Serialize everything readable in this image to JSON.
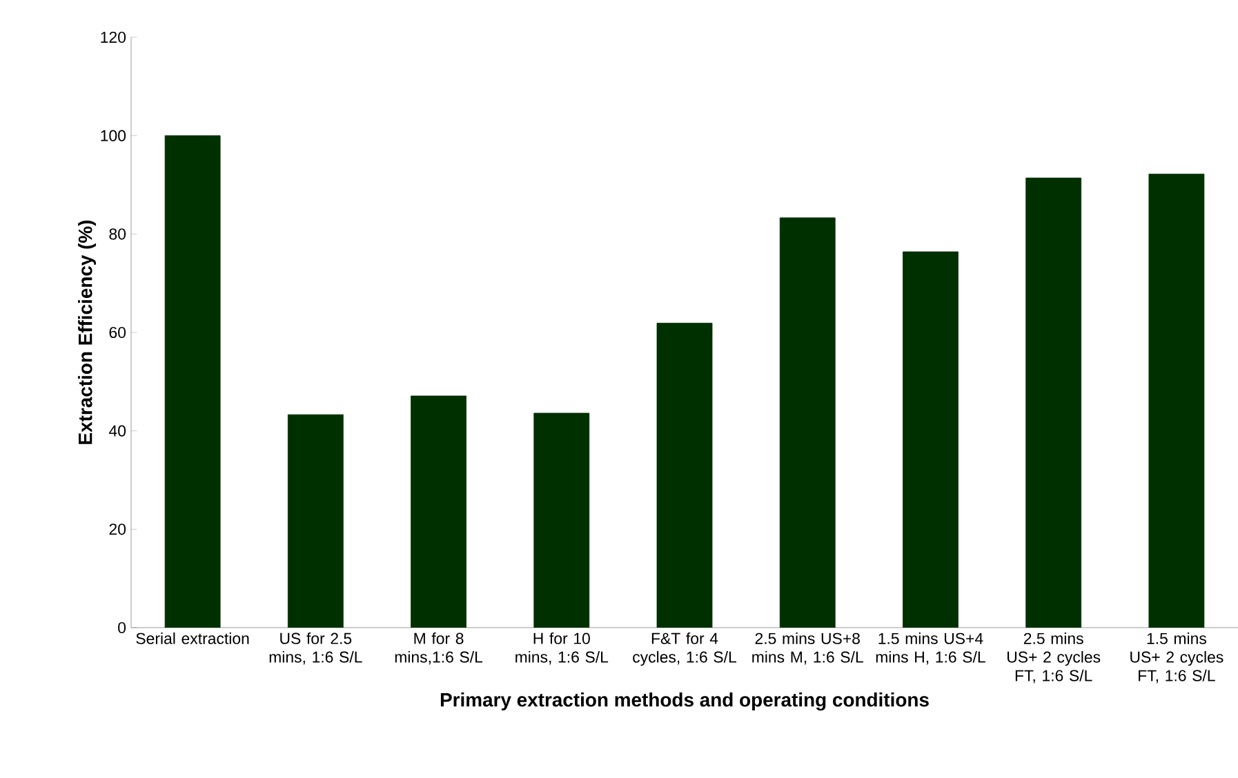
{
  "chart_data": {
    "type": "bar",
    "xlabel": "Primary extraction methods and operating conditions",
    "ylabel": "Extraction Efficiency (%)",
    "categories": [
      "Serial extraction",
      "US for 2.5 mins, 1:6 S/L",
      "M for 8 mins,1:6 S/L",
      "H for 10 mins, 1:6 S/L",
      "F&T for 4 cycles, 1:6 S/L",
      "2.5 mins US+8 mins M, 1:6 S/L",
      "1.5 mins US+4 mins H, 1:6 S/L",
      "2.5 mins US+ 2 cycles FT, 1:6 S/L",
      "1.5 mins US+ 2 cycles FT, 1:6 S/L"
    ],
    "values": [
      100,
      43.3,
      47.1,
      43.6,
      61.9,
      83.3,
      76.4,
      91.4,
      92.2
    ],
    "color": "#003000",
    "ylim": [
      0,
      120
    ],
    "yticks": [
      0,
      20,
      40,
      60,
      80,
      100,
      120
    ],
    "grid": false
  }
}
